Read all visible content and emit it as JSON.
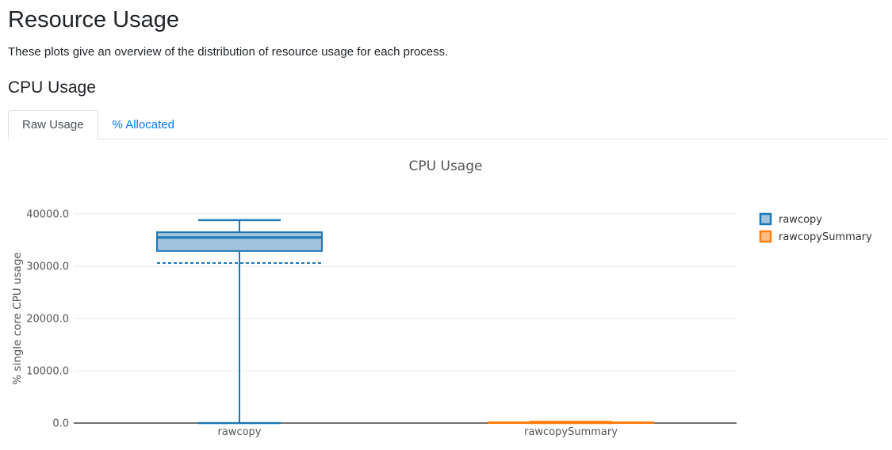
{
  "page": {
    "title": "Resource Usage",
    "subtitle": "These plots give an overview of the distribution of resource usage for each process.",
    "section_heading": "CPU Usage"
  },
  "tabs": [
    {
      "label": "Raw Usage",
      "active": true
    },
    {
      "label": "% Allocated",
      "active": false
    }
  ],
  "colors": {
    "link": "#007bff",
    "tab_border": "#dee2e6",
    "active_tab_text": "#495057",
    "gridline": "#e8e8e8",
    "axis_line": "#444444",
    "axis_text": "#555555",
    "title_text": "#555555",
    "legend_text": "#333333"
  },
  "chart_data": {
    "type": "box",
    "title": "CPU Usage",
    "xlabel": "",
    "ylabel": "% single core CPU usage",
    "ylim": [
      0,
      42000
    ],
    "grid": true,
    "legend_position": "right",
    "yticks": [
      {
        "value": 40000,
        "label": "40000.0"
      },
      {
        "value": 30000,
        "label": "30000.0"
      },
      {
        "value": 20000,
        "label": "20000.0"
      },
      {
        "value": 10000,
        "label": "10000.0"
      },
      {
        "value": 0,
        "label": "0.0"
      }
    ],
    "categories": [
      "rawcopy",
      "rawcopySummary"
    ],
    "legend": [
      "rawcopy",
      "rawcopySummary"
    ],
    "series": [
      {
        "name": "rawcopy",
        "color": "#1f77b4",
        "fill": "#a0c3de",
        "min": 0,
        "q1": 32900,
        "median": 35500,
        "q3": 36500,
        "max": 38800,
        "mean": 30600
      },
      {
        "name": "rawcopySummary",
        "color": "#ff7f0e",
        "fill": "#ffbf86",
        "min": 0,
        "q1": 20,
        "median": 80,
        "q3": 150,
        "max": 250,
        "mean": 100
      }
    ]
  }
}
